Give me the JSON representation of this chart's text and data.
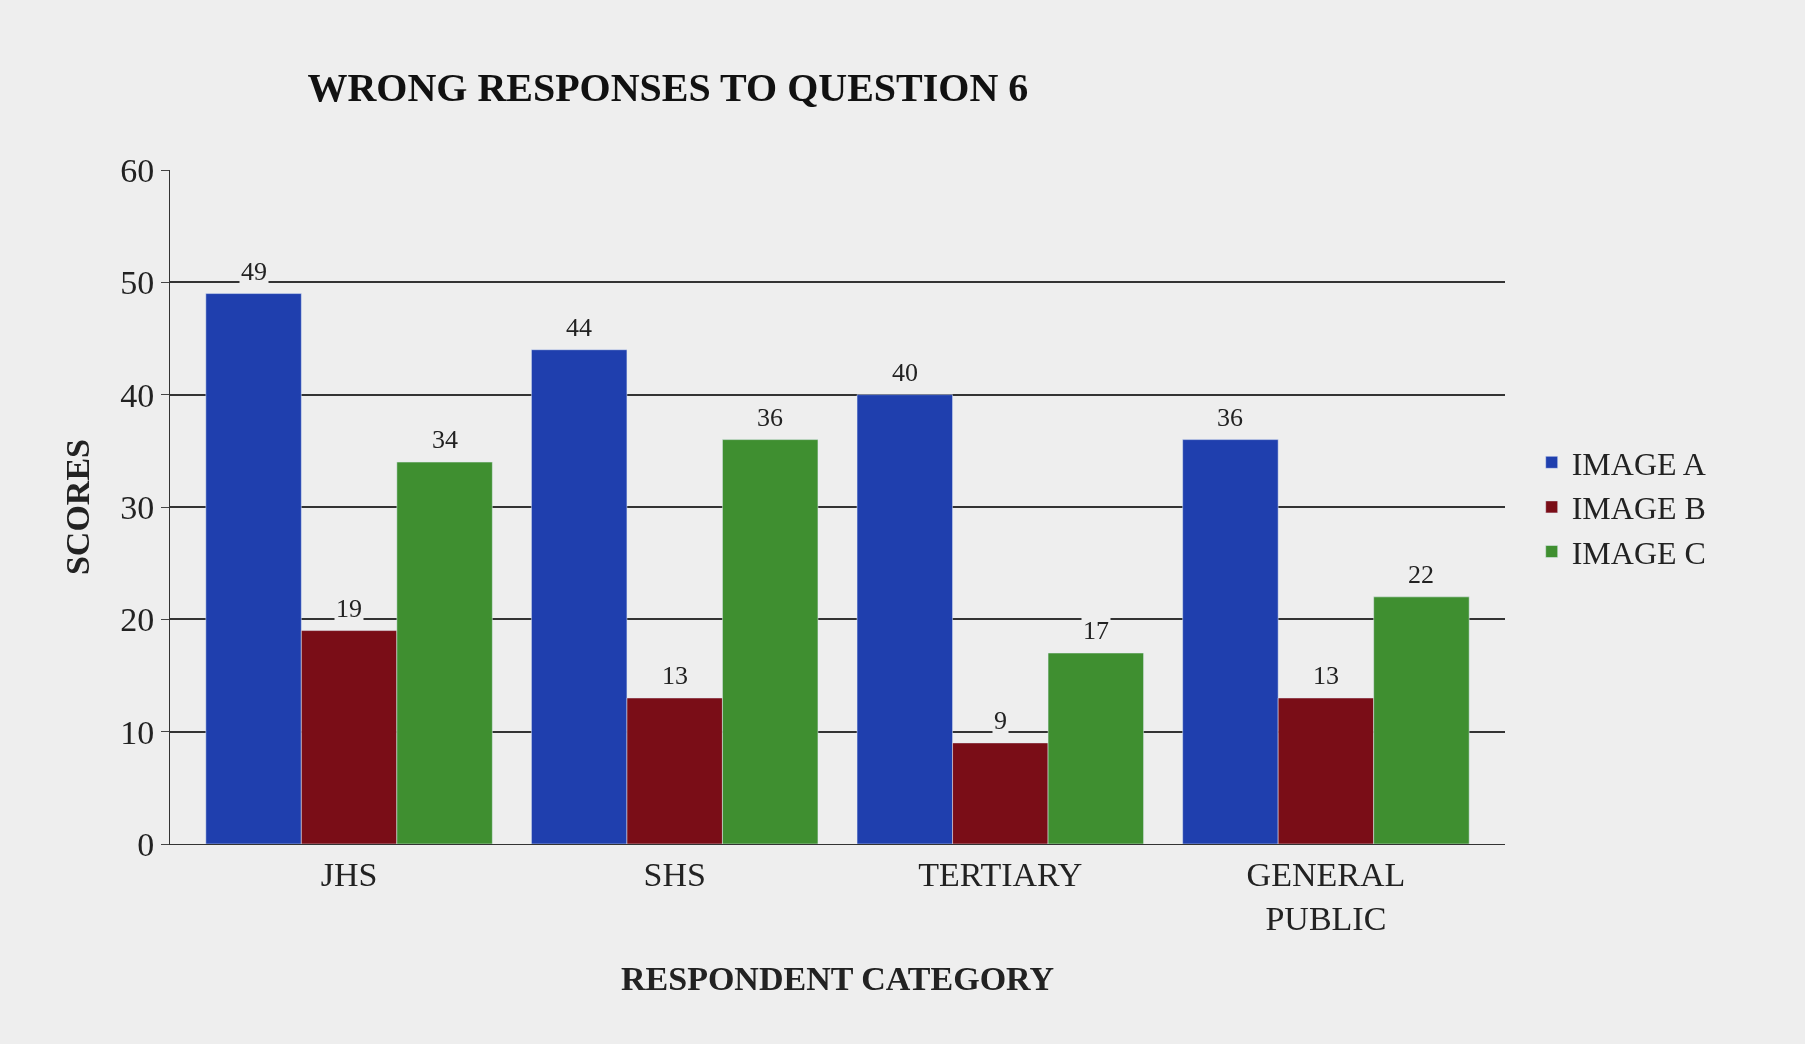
{
  "chart_data": {
    "type": "bar",
    "title": "WRONG RESPONSES TO QUESTION 6",
    "xlabel": "RESPONDENT CATEGORY",
    "ylabel": "SCORES",
    "categories": [
      "JHS",
      "SHS",
      "TERTIARY",
      "GENERAL PUBLIC"
    ],
    "series": [
      {
        "name": "IMAGE A",
        "color": "#1f3fae",
        "values": [
          49,
          44,
          40,
          36
        ]
      },
      {
        "name": "IMAGE B",
        "color": "#7a0d17",
        "values": [
          19,
          13,
          9,
          13
        ]
      },
      {
        "name": "IMAGE C",
        "color": "#3f8f30",
        "values": [
          34,
          36,
          17,
          22
        ]
      }
    ],
    "ylim": [
      0,
      60
    ],
    "yticks": [
      0,
      10,
      20,
      30,
      40,
      50,
      60
    ],
    "grid": "y",
    "legend": "right",
    "data_labels": true
  }
}
